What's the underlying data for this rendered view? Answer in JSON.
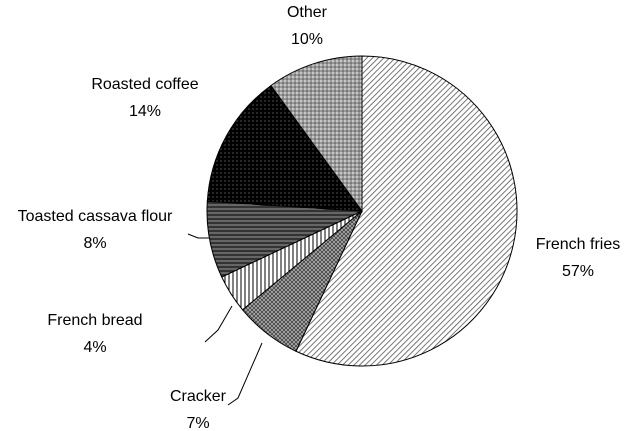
{
  "chart_data": {
    "type": "pie",
    "categories": [
      "French fries",
      "Cracker",
      "French bread",
      "Toasted cassava flour",
      "Roasted coffee",
      "Other"
    ],
    "values": [
      57,
      7,
      4,
      8,
      14,
      10
    ],
    "value_labels": [
      "57%",
      "7%",
      "4%",
      "8%",
      "14%",
      "10%"
    ]
  }
}
